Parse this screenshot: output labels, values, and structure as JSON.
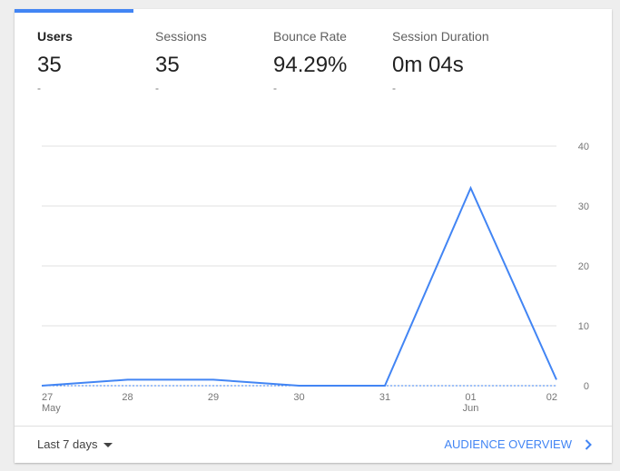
{
  "metrics": [
    {
      "label": "Users",
      "value": "35",
      "delta": "-"
    },
    {
      "label": "Sessions",
      "value": "35",
      "delta": "-"
    },
    {
      "label": "Bounce Rate",
      "value": "94.29%",
      "delta": "-"
    },
    {
      "label": "Session Duration",
      "value": "0m 04s",
      "delta": "-"
    }
  ],
  "footer": {
    "date_range_label": "Last 7 days",
    "overview_link": "AUDIENCE OVERVIEW"
  },
  "colors": {
    "accent": "#4285f4",
    "line": "#4285f4",
    "grid": "#e0e0e0",
    "text_muted": "#757575"
  },
  "icons": {
    "date_range": "caret-down-icon",
    "overview": "chevron-right-icon"
  },
  "chart_data": {
    "type": "line",
    "x": [
      "27 May",
      "28",
      "29",
      "30",
      "31",
      "01 Jun",
      "02"
    ],
    "x_tick_labels": [
      {
        "day": "27",
        "month": "May"
      },
      {
        "day": "28",
        "month": ""
      },
      {
        "day": "29",
        "month": ""
      },
      {
        "day": "30",
        "month": ""
      },
      {
        "day": "31",
        "month": ""
      },
      {
        "day": "01",
        "month": "Jun"
      },
      {
        "day": "02",
        "month": ""
      }
    ],
    "series": [
      {
        "values": [
          0,
          1,
          1,
          0,
          0,
          33,
          1
        ]
      }
    ],
    "comparison_series_values": [
      0,
      0,
      0,
      0,
      0,
      0,
      0
    ],
    "ylim": [
      0,
      40
    ],
    "y_ticks": [
      0,
      10,
      20,
      30,
      40
    ],
    "y_axis_position": "right",
    "grid": true,
    "legend": "none"
  }
}
